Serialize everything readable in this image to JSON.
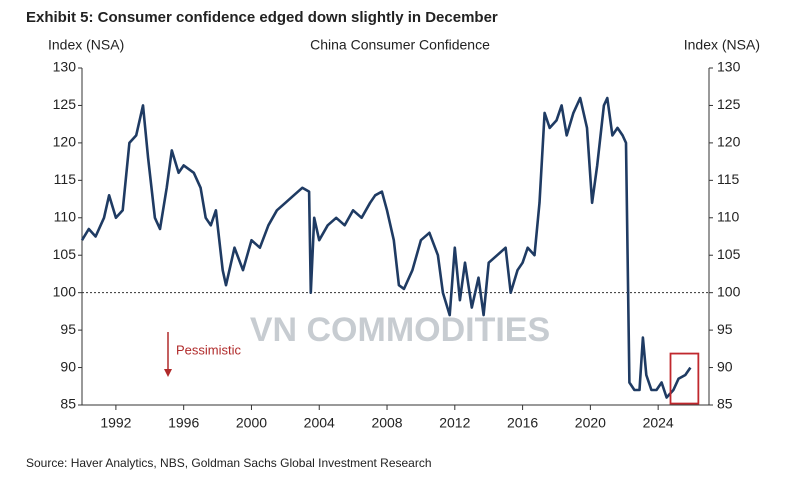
{
  "chart_data": {
    "type": "line",
    "exhibit_title": "Exhibit 5: Consumer confidence edged down slightly in December",
    "title": "China Consumer Confidence",
    "y_label": "Index (NSA)",
    "y2_label": "Index (NSA)",
    "annotation": "Pessimistic",
    "watermark": "VN COMMODITIES",
    "source": "Source: Haver Analytics, NBS, Goldman Sachs Global Investment Research",
    "reference_line": 100,
    "x": [
      1990,
      1990.4,
      1990.8,
      1991.3,
      1991.6,
      1992,
      1992.4,
      1992.8,
      1993.2,
      1993.6,
      1993.9,
      1994.3,
      1994.6,
      1995,
      1995.3,
      1995.7,
      1996,
      1996.6,
      1997,
      1997.3,
      1997.6,
      1997.9,
      1998.3,
      1998.5,
      1999,
      1999.5,
      2000,
      2000.5,
      2001,
      2001.5,
      2002,
      2002.5,
      2003,
      2003.4,
      2003.5,
      2003.7,
      2004,
      2004.5,
      2005,
      2005.5,
      2006,
      2006.5,
      2007,
      2007.3,
      2007.7,
      2008,
      2008.4,
      2008.7,
      2009,
      2009.5,
      2010,
      2010.5,
      2011,
      2011.3,
      2011.7,
      2012,
      2012.3,
      2012.6,
      2013,
      2013.4,
      2013.7,
      2014,
      2014.5,
      2015,
      2015.3,
      2015.7,
      2016,
      2016.3,
      2016.7,
      2017,
      2017.3,
      2017.6,
      2018,
      2018.3,
      2018.6,
      2019,
      2019.4,
      2019.8,
      2020.1,
      2020.4,
      2020.8,
      2021,
      2021.3,
      2021.6,
      2021.9,
      2022.1,
      2022.3,
      2022.6,
      2022.9,
      2023.1,
      2023.3,
      2023.6,
      2023.9,
      2024.2,
      2024.5,
      2024.9,
      2025.2,
      2025.6,
      2025.9
    ],
    "series": [
      {
        "name": "China Consumer Confidence",
        "color": "#1f3b63",
        "values": [
          107,
          108.5,
          107.5,
          110,
          113,
          110,
          111,
          120,
          121,
          125,
          118,
          110,
          108.5,
          114,
          119,
          116,
          117,
          116,
          114,
          110,
          109,
          111,
          103,
          101,
          106,
          103,
          107,
          106,
          109,
          111,
          112,
          113,
          114,
          113.5,
          100,
          110,
          107,
          109,
          110,
          109,
          111,
          110,
          112,
          113,
          113.5,
          111,
          107,
          101,
          100.5,
          103,
          107,
          108,
          105,
          100,
          97,
          106,
          99,
          104,
          98,
          102,
          97,
          104,
          105,
          106,
          100,
          103,
          104,
          106,
          105,
          112,
          124,
          122,
          123,
          125,
          121,
          124,
          126,
          122,
          112,
          117,
          125,
          126,
          121,
          122,
          121,
          120,
          88,
          87,
          87,
          94,
          89,
          87,
          87,
          88,
          86,
          87,
          88.5,
          89,
          90
        ]
      }
    ],
    "xlim": [
      1990,
      2027
    ],
    "xticks": [
      1992,
      1996,
      2000,
      2004,
      2008,
      2012,
      2016,
      2020,
      2024
    ],
    "ylim": [
      85,
      130
    ],
    "yticks": [
      85,
      90,
      95,
      100,
      105,
      110,
      115,
      120,
      125,
      130
    ],
    "y2lim": [
      85,
      130
    ],
    "y2ticks": [
      85,
      90,
      95,
      100,
      105,
      110,
      115,
      120,
      125,
      130
    ]
  }
}
